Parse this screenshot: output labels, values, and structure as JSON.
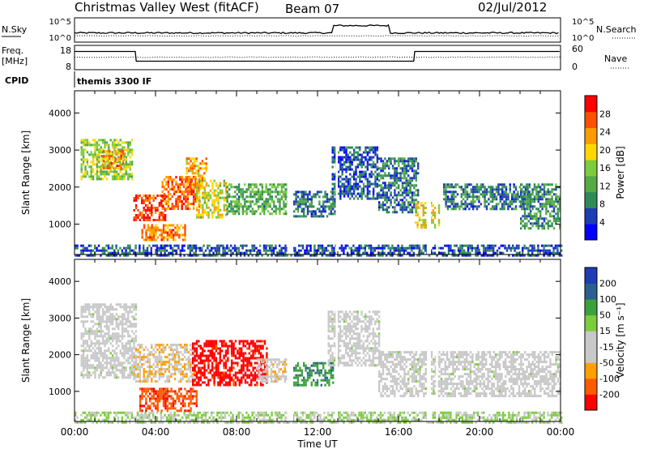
{
  "header": {
    "station": "Christmas Valley West (fitACF)",
    "beam": "Beam 07",
    "date": "02/Jul/2012"
  },
  "info_panels": {
    "nsky_label": "N.Sky",
    "nsky_ticks": [
      "10^5",
      "10^0"
    ],
    "nsearch_label": "N.Search",
    "nsearch_ticks": [
      "10^5",
      "10^0"
    ],
    "freq_label_1": "Freq.",
    "freq_label_2": "[MHz]",
    "freq_ticks": [
      "18",
      "8"
    ],
    "nave_label": "Nave",
    "nave_ticks": [
      "60",
      "0"
    ],
    "cpid_label": "CPID",
    "cpid_value": "themis 3300 IF"
  },
  "colors": {
    "power": [
      "#0000ff",
      "#1e3cb4",
      "#2e8b57",
      "#55aa44",
      "#7ccd3c",
      "#ffd700",
      "#ff9b00",
      "#ff5000",
      "#ff0000"
    ],
    "velocity": [
      "#ff0000",
      "#ff5a00",
      "#ffa000",
      "#c8c8c8",
      "#c8c8c8",
      "#7ccd3c",
      "#3ca03c",
      "#2a6090",
      "#1e3cb4"
    ]
  },
  "chart_data": [
    {
      "type": "heatmap",
      "name": "power",
      "ylabel": "Slant Range [km]",
      "yticks": [
        1000,
        2000,
        3000,
        4000
      ],
      "ylim": [
        180,
        4600
      ],
      "xlim": [
        0,
        24
      ],
      "colorbar_label": "Power [dB]",
      "colorbar_ticks": [
        "28",
        "24",
        "20",
        "16",
        "12",
        "8",
        "4"
      ],
      "colorbar_range": [
        0,
        32
      ],
      "bands": [
        {
          "t0": 0.3,
          "t1": 2.8,
          "r0": 2200,
          "r1": 3300,
          "v": 16
        },
        {
          "t0": 1.3,
          "t1": 2.5,
          "r0": 2500,
          "r1": 3000,
          "v": 24
        },
        {
          "t0": 2.9,
          "t1": 4.5,
          "r0": 1100,
          "r1": 1800,
          "v": 28
        },
        {
          "t0": 4.3,
          "t1": 6.2,
          "r0": 1400,
          "r1": 2300,
          "v": 26
        },
        {
          "t0": 5.5,
          "t1": 6.5,
          "r0": 2000,
          "r1": 2800,
          "v": 22
        },
        {
          "t0": 6.0,
          "t1": 7.5,
          "r0": 1200,
          "r1": 2200,
          "v": 18
        },
        {
          "t0": 3.3,
          "t1": 5.5,
          "r0": 600,
          "r1": 1000,
          "v": 24
        },
        {
          "t0": 7.5,
          "t1": 10.5,
          "r0": 1300,
          "r1": 2100,
          "v": 12
        },
        {
          "t0": 10.8,
          "t1": 12.9,
          "r0": 1200,
          "r1": 1900,
          "v": 8
        },
        {
          "t0": 12.7,
          "t1": 15.0,
          "r0": 1700,
          "r1": 3100,
          "v": 6
        },
        {
          "t0": 15.0,
          "t1": 17.0,
          "r0": 1300,
          "r1": 2800,
          "v": 8
        },
        {
          "t0": 16.8,
          "t1": 18.0,
          "r0": 900,
          "r1": 1600,
          "v": 20
        },
        {
          "t0": 18.2,
          "t1": 22.5,
          "r0": 1400,
          "r1": 2100,
          "v": 8
        },
        {
          "t0": 22.0,
          "t1": 24.0,
          "r0": 900,
          "r1": 2100,
          "v": 10
        },
        {
          "t0": 0.0,
          "t1": 24.0,
          "r0": 180,
          "r1": 450,
          "v": 6
        }
      ],
      "x_tick_labels": [
        "00:00",
        "04:00",
        "08:00",
        "12:00",
        "16:00",
        "20:00",
        "00:00"
      ]
    },
    {
      "type": "heatmap",
      "name": "velocity",
      "ylabel": "Slant Range [km]",
      "yticks": [
        1000,
        2000,
        3000,
        4000
      ],
      "ylim": [
        180,
        4600
      ],
      "xlim": [
        0,
        24
      ],
      "colorbar_label": "Velocity [m s⁻¹]",
      "colorbar_ticks": [
        "200",
        "100",
        "50",
        "15",
        "-15",
        "-50",
        "-100",
        "-200"
      ],
      "colorbar_range": [
        -250,
        250
      ],
      "bands": [
        {
          "t0": 0.3,
          "t1": 3.0,
          "r0": 1400,
          "r1": 3400,
          "v": 0
        },
        {
          "t0": 2.9,
          "t1": 6.0,
          "r0": 1300,
          "r1": 2300,
          "v": -75
        },
        {
          "t0": 5.8,
          "t1": 9.5,
          "r0": 1200,
          "r1": 2400,
          "v": -220
        },
        {
          "t0": 3.2,
          "t1": 6.0,
          "r0": 500,
          "r1": 1100,
          "v": -180
        },
        {
          "t0": 9.0,
          "t1": 10.5,
          "r0": 1300,
          "r1": 1900,
          "v": -60
        },
        {
          "t0": 10.8,
          "t1": 12.8,
          "r0": 1200,
          "r1": 1800,
          "v": 120
        },
        {
          "t0": 12.5,
          "t1": 15.0,
          "r0": 1700,
          "r1": 3200,
          "v": 0
        },
        {
          "t0": 15.0,
          "t1": 24.0,
          "r0": 900,
          "r1": 2100,
          "v": 0
        },
        {
          "t0": 0.0,
          "t1": 24.0,
          "r0": 180,
          "r1": 450,
          "v": 30
        }
      ],
      "xlabel": "Time UT",
      "x_tick_labels": [
        "00:00",
        "04:00",
        "08:00",
        "12:00",
        "16:00",
        "20:00",
        "00:00"
      ]
    }
  ]
}
